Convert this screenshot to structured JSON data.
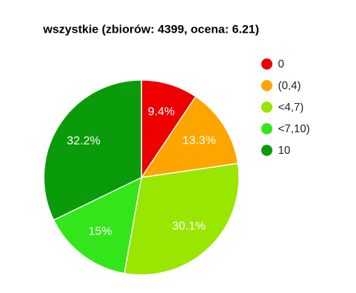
{
  "chart_data": {
    "type": "pie",
    "title": "wszystkie (zbiorów: 4399, ocena: 6.21)",
    "categories": [
      "0",
      "(0,4)",
      "<4,7)",
      "<7,10)",
      "10"
    ],
    "values": [
      9.4,
      13.3,
      30.1,
      15,
      32.2
    ],
    "value_labels": [
      "9.4%",
      "13.3%",
      "30.1%",
      "15%",
      "32.2%"
    ],
    "colors": [
      "#ee0000",
      "#ffa500",
      "#99e600",
      "#33e619",
      "#0a9b0a"
    ],
    "legend": "right"
  }
}
